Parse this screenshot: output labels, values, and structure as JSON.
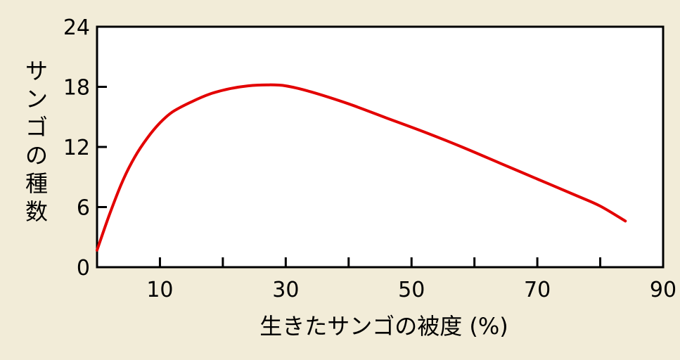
{
  "chart_data": {
    "type": "line",
    "title": "",
    "xlabel": "生きたサンゴの被度 (%)",
    "ylabel": "サンゴの種数",
    "xlim": [
      0,
      90
    ],
    "ylim": [
      0,
      24
    ],
    "x_ticks": [
      10,
      30,
      50,
      70,
      90
    ],
    "x_minor_ticks": [
      20,
      40,
      60,
      80
    ],
    "y_ticks": [
      0,
      6,
      12,
      18,
      24
    ],
    "grid": false,
    "legend": "none",
    "colors": {
      "line": "#e30000",
      "background": "#f2ecd8",
      "plot_bg": "#ffffff",
      "axis": "#000000"
    },
    "series": [
      {
        "x": [
          0,
          2,
          4,
          6,
          8,
          10,
          12,
          15,
          18,
          21,
          24,
          27,
          30,
          34,
          40,
          46,
          52,
          58,
          64,
          70,
          76,
          80,
          84
        ],
        "y": [
          1.7,
          5.3,
          8.5,
          11.0,
          12.9,
          14.4,
          15.5,
          16.5,
          17.3,
          17.8,
          18.1,
          18.2,
          18.1,
          17.5,
          16.3,
          14.9,
          13.5,
          12.0,
          10.4,
          8.8,
          7.2,
          6.1,
          4.6
        ]
      }
    ]
  }
}
